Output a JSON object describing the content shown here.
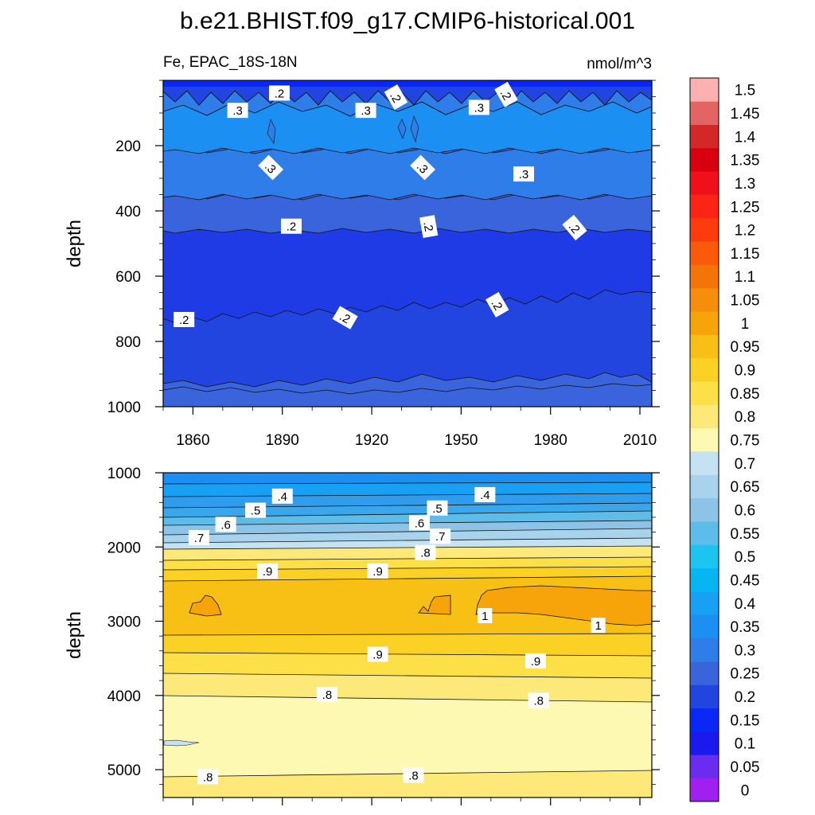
{
  "figure": {
    "title": "b.e21.BHIST.f09_g17.CMIP6-historical.001",
    "subtitle_left": "Fe, EPAC_18S-18N",
    "subtitle_right": "nmol/m^3"
  },
  "chart_data": [
    {
      "type": "heatmap",
      "panel": "upper",
      "xlabel": "",
      "ylabel": "depth",
      "x_ticks": [
        1860,
        1890,
        1920,
        1950,
        1980,
        2010
      ],
      "y_ticks": [
        200,
        400,
        600,
        800,
        1000
      ],
      "xlim": [
        1850,
        2014
      ],
      "ylim": [
        1000,
        0
      ],
      "contour_labels": [
        {
          "value": ".2",
          "year": 1889,
          "depth": 40
        },
        {
          "value": ".3",
          "year": 1875,
          "depth": 93
        },
        {
          "value": ".3",
          "year": 1918,
          "depth": 93
        },
        {
          "value": ".2",
          "year": 1928,
          "depth": 52,
          "rotation": 60
        },
        {
          "value": ".3",
          "year": 1956,
          "depth": 84
        },
        {
          "value": ".2",
          "year": 1965,
          "depth": 44,
          "rotation": 60
        },
        {
          "value": ".3",
          "year": 1886,
          "depth": 268,
          "rotation": 45
        },
        {
          "value": ".3",
          "year": 1937,
          "depth": 268,
          "rotation": 45
        },
        {
          "value": ".3",
          "year": 1971,
          "depth": 288
        },
        {
          "value": ".2",
          "year": 1893,
          "depth": 448
        },
        {
          "value": ".2",
          "year": 1939,
          "depth": 448,
          "rotation": 80
        },
        {
          "value": ".2",
          "year": 1988,
          "depth": 452,
          "rotation": 50
        },
        {
          "value": ".2",
          "year": 1857,
          "depth": 734
        },
        {
          "value": ".2",
          "year": 1911,
          "depth": 728,
          "rotation": 30
        },
        {
          "value": ".2",
          "year": 1962,
          "depth": 688,
          "rotation": 60
        }
      ]
    },
    {
      "type": "heatmap",
      "panel": "lower",
      "xlabel": "",
      "ylabel": "depth",
      "y_ticks": [
        1000,
        2000,
        3000,
        4000,
        5000
      ],
      "xlim": [
        1850,
        2014
      ],
      "ylim": [
        5375,
        1000
      ],
      "contour_labels": [
        {
          "value": ".4",
          "year": 1890,
          "depth": 1320
        },
        {
          "value": ".5",
          "year": 1881,
          "depth": 1510
        },
        {
          "value": ".6",
          "year": 1871,
          "depth": 1700
        },
        {
          "value": ".7",
          "year": 1862,
          "depth": 1880
        },
        {
          "value": ".9",
          "year": 1885,
          "depth": 2330
        },
        {
          "value": ".4",
          "year": 1958,
          "depth": 1300
        },
        {
          "value": ".5",
          "year": 1942,
          "depth": 1480
        },
        {
          "value": ".6",
          "year": 1936,
          "depth": 1680
        },
        {
          "value": ".7",
          "year": 1943,
          "depth": 1860
        },
        {
          "value": ".8",
          "year": 1938,
          "depth": 2080
        },
        {
          "value": ".9",
          "year": 1922,
          "depth": 2330
        },
        {
          "value": "1",
          "year": 1958,
          "depth": 2930
        },
        {
          "value": "1",
          "year": 1996,
          "depth": 3060
        },
        {
          "value": ".9",
          "year": 1922,
          "depth": 3450
        },
        {
          "value": ".9",
          "year": 1975,
          "depth": 3540
        },
        {
          "value": ".8",
          "year": 1905,
          "depth": 3990
        },
        {
          "value": ".8",
          "year": 1976,
          "depth": 4070
        },
        {
          "value": ".8",
          "year": 1865,
          "depth": 5100
        },
        {
          "value": ".8",
          "year": 1934,
          "depth": 5080
        }
      ]
    }
  ],
  "colorbar": {
    "labels": [
      "0",
      "0.05",
      "0.1",
      "0.15",
      "0.2",
      "0.25",
      "0.3",
      "0.35",
      "0.4",
      "0.45",
      "0.5",
      "0.55",
      "0.6",
      "0.65",
      "0.7",
      "0.75",
      "0.8",
      "0.85",
      "0.9",
      "0.95",
      "1",
      "1.05",
      "1.1",
      "1.15",
      "1.2",
      "1.25",
      "1.3",
      "1.35",
      "1.4",
      "1.45",
      "1.5"
    ],
    "colors": [
      "#a020f0",
      "#6a2cee",
      "#1a1aee",
      "#0a28f5",
      "#2245e0",
      "#3a64dc",
      "#2f7de8",
      "#1c8ff2",
      "#18a0f5",
      "#06b6f2",
      "#1dc4f0",
      "#5ebce8",
      "#8cc3e6",
      "#a8d3ec",
      "#c4e2f2",
      "#fdf8b2",
      "#fde87a",
      "#fddf47",
      "#fcd126",
      "#f8bf15",
      "#f6a40a",
      "#f68e0b",
      "#f57408",
      "#fa5a0a",
      "#fc3c0c",
      "#fc2414",
      "#f0101a",
      "#d80010",
      "#d22828",
      "#e46464",
      "#fdb0b0"
    ]
  }
}
